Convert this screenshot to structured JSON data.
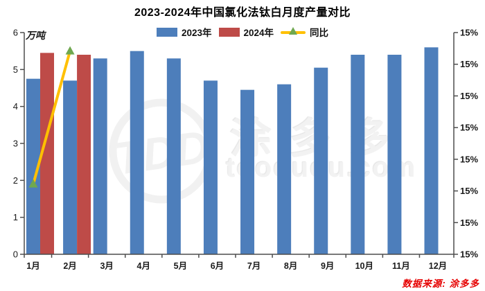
{
  "chart_data": {
    "type": "bar",
    "title": "2023-2024年中国氯化法钛白月度产量对比",
    "categories": [
      "1月",
      "2月",
      "3月",
      "4月",
      "5月",
      "6月",
      "7月",
      "8月",
      "9月",
      "10月",
      "11月",
      "12月"
    ],
    "series": [
      {
        "name": "2023年",
        "type": "bar",
        "color": "#4D7EBB",
        "values": [
          4.75,
          4.7,
          5.3,
          5.5,
          5.3,
          4.7,
          4.45,
          4.6,
          5.05,
          5.4,
          5.4,
          5.6
        ]
      },
      {
        "name": "2024年",
        "type": "bar",
        "color": "#BE4B48",
        "values": [
          5.45,
          5.4
        ]
      },
      {
        "name": "同比",
        "type": "line",
        "axis": "right",
        "color": "#FFC000",
        "marker": "triangle-up",
        "marker_color": "#6FA850",
        "values_plotted_on_left_scale": [
          1.9,
          5.5
        ],
        "note": "YoY line shown only for 1月 and 2月, plotted against right percent axis"
      }
    ],
    "ylabel_left": "万吨",
    "ylim_left": [
      0,
      6
    ],
    "left_axis_ticks": [
      "0",
      "1",
      "2",
      "3",
      "4",
      "5",
      "6"
    ],
    "right_axis_ticks": [
      "15%",
      "15%",
      "15%",
      "15%",
      "15%",
      "15%",
      "15%",
      "15%"
    ],
    "grid": false,
    "legend_position": "top"
  },
  "watermark": {
    "logo_text": "TDD",
    "cn_text": "涂多多",
    "url_text": "toodudu.com"
  },
  "source": {
    "text": "数据来源: 涂多多",
    "color": "#E60000"
  }
}
